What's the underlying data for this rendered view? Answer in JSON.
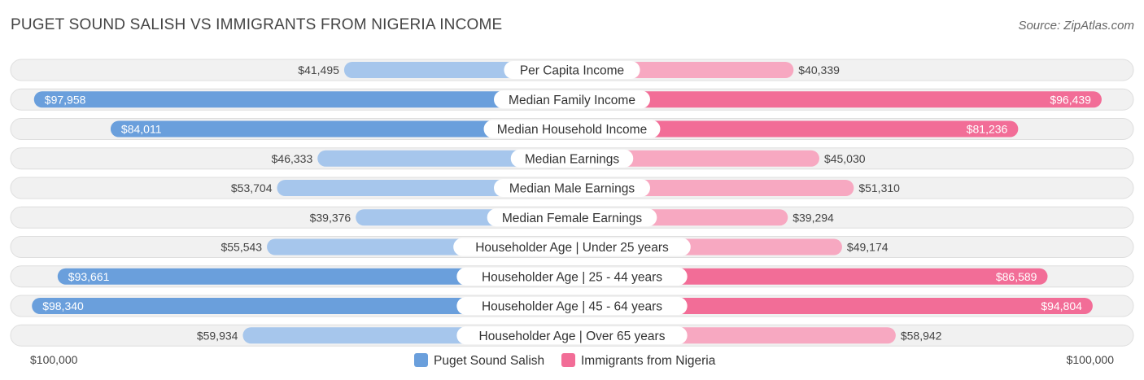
{
  "chart_data": {
    "type": "bar",
    "title": "PUGET SOUND SALISH VS IMMIGRANTS FROM NIGERIA INCOME",
    "source": "Source: ZipAtlas.com",
    "categories": [
      "Per Capita Income",
      "Median Family Income",
      "Median Household Income",
      "Median Earnings",
      "Median Male Earnings",
      "Median Female Earnings",
      "Householder Age | Under 25 years",
      "Householder Age | 25 - 44 years",
      "Householder Age | 45 - 64 years",
      "Householder Age | Over 65 years"
    ],
    "series": [
      {
        "name": "Puget Sound Salish",
        "color": "#6a9fdc",
        "light_color": "#a6c6ec",
        "values": [
          41495,
          97958,
          84011,
          46333,
          53704,
          39376,
          55543,
          93661,
          98340,
          59934
        ],
        "labels": [
          "$41,495",
          "$97,958",
          "$84,011",
          "$46,333",
          "$53,704",
          "$39,376",
          "$55,543",
          "$93,661",
          "$98,340",
          "$59,934"
        ]
      },
      {
        "name": "Immigrants from Nigeria",
        "color": "#f26d97",
        "light_color": "#f7a8c1",
        "values": [
          40339,
          96439,
          81236,
          45030,
          51310,
          39294,
          49174,
          86589,
          94804,
          58942
        ],
        "labels": [
          "$40,339",
          "$96,439",
          "$81,236",
          "$45,030",
          "$51,310",
          "$39,294",
          "$49,174",
          "$86,589",
          "$94,804",
          "$58,942"
        ]
      }
    ],
    "xlim": [
      0,
      100000
    ],
    "axis_left_label": "$100,000",
    "axis_right_label": "$100,000",
    "legend_position": "bottom-center"
  }
}
